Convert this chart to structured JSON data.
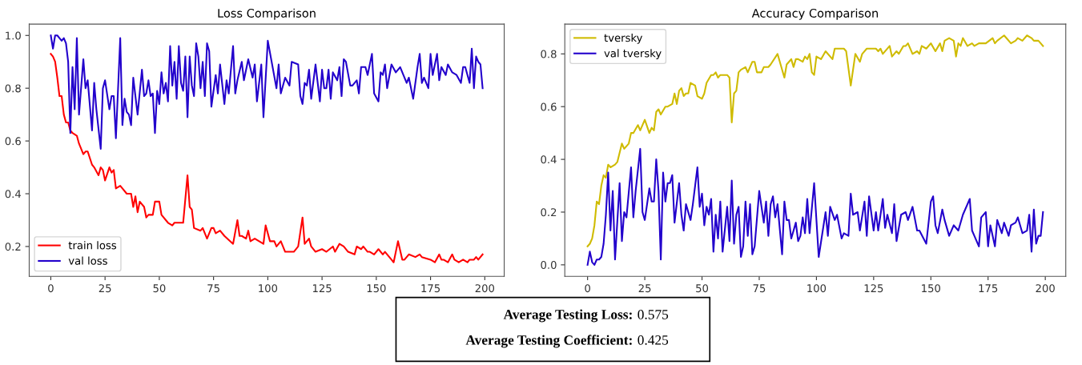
{
  "chart_data": [
    {
      "type": "line",
      "title": "Loss Comparison",
      "xlim": [
        -9.95,
        208.95
      ],
      "xticks": [
        0,
        25,
        50,
        75,
        100,
        125,
        150,
        175,
        200
      ],
      "ylim": [
        0.087,
        1.043
      ],
      "yticks": [
        0.2,
        0.4,
        0.6,
        0.8,
        {
          "value": 1,
          "label": "1.0"
        }
      ],
      "legend": "lower left",
      "grid": false,
      "annotations": [
        "Average Testing Loss: 0.575",
        "Average Testing Coefficient: 0.425"
      ],
      "series": [
        {
          "name": "train loss",
          "color": "#ff0000",
          "x": [
            0,
            1,
            2,
            3,
            4,
            5,
            6,
            7,
            8,
            9,
            10,
            12,
            13,
            15,
            16,
            17,
            19,
            20,
            22,
            23,
            24,
            25,
            27,
            28,
            29,
            30,
            32,
            33,
            35,
            37,
            38,
            39,
            40,
            41,
            43,
            44,
            45,
            47,
            48,
            50,
            51,
            54,
            56,
            57,
            60,
            61,
            63,
            64,
            65,
            66,
            69,
            70,
            72,
            74,
            75,
            76,
            78,
            80,
            84,
            86,
            87,
            88,
            90,
            91,
            92,
            94,
            96,
            98,
            99,
            101,
            103,
            104,
            106,
            108,
            110,
            112,
            114,
            116,
            117,
            119,
            120,
            122,
            125,
            127,
            130,
            131,
            133,
            135,
            137,
            140,
            141,
            143,
            144,
            146,
            147,
            149,
            151,
            153,
            154,
            157,
            158,
            160,
            162,
            163,
            165,
            168,
            170,
            171,
            175,
            177,
            179,
            180,
            181,
            183,
            185,
            186,
            188,
            190,
            192,
            193,
            195,
            196,
            197,
            199
          ],
          "values": [
            0.93,
            0.92,
            0.9,
            0.84,
            0.77,
            0.77,
            0.7,
            0.67,
            0.67,
            0.64,
            0.63,
            0.62,
            0.59,
            0.55,
            0.56,
            0.56,
            0.51,
            0.5,
            0.47,
            0.5,
            0.49,
            0.45,
            0.5,
            0.48,
            0.49,
            0.42,
            0.43,
            0.42,
            0.4,
            0.4,
            0.35,
            0.39,
            0.33,
            0.37,
            0.35,
            0.31,
            0.32,
            0.32,
            0.37,
            0.37,
            0.32,
            0.29,
            0.28,
            0.29,
            0.29,
            0.29,
            0.47,
            0.35,
            0.34,
            0.27,
            0.26,
            0.27,
            0.23,
            0.27,
            0.27,
            0.25,
            0.26,
            0.24,
            0.21,
            0.3,
            0.24,
            0.24,
            0.23,
            0.26,
            0.22,
            0.23,
            0.22,
            0.21,
            0.28,
            0.22,
            0.22,
            0.2,
            0.22,
            0.18,
            0.18,
            0.18,
            0.2,
            0.31,
            0.21,
            0.23,
            0.2,
            0.18,
            0.19,
            0.18,
            0.2,
            0.18,
            0.21,
            0.2,
            0.18,
            0.17,
            0.2,
            0.19,
            0.2,
            0.18,
            0.18,
            0.17,
            0.19,
            0.17,
            0.18,
            0.15,
            0.14,
            0.22,
            0.15,
            0.15,
            0.17,
            0.16,
            0.17,
            0.16,
            0.15,
            0.14,
            0.17,
            0.15,
            0.15,
            0.14,
            0.17,
            0.15,
            0.14,
            0.15,
            0.14,
            0.15,
            0.15,
            0.16,
            0.15,
            0.17
          ]
        },
        {
          "name": "val loss",
          "color": "#2200cc",
          "x": [
            0,
            1,
            2,
            3,
            4,
            5,
            6,
            7,
            8,
            9,
            10,
            11,
            12,
            13,
            15,
            16,
            17,
            19,
            20,
            21,
            23,
            24,
            25,
            27,
            28,
            29,
            30,
            32,
            33,
            34,
            35,
            36,
            37,
            38,
            40,
            42,
            43,
            44,
            45,
            46,
            47,
            48,
            49,
            50,
            51,
            52,
            53,
            54,
            55,
            56,
            57,
            58,
            59,
            60,
            61,
            62,
            63,
            64,
            65,
            66,
            67,
            68,
            69,
            70,
            71,
            72,
            73,
            74,
            76,
            77,
            78,
            80,
            81,
            82,
            84,
            85,
            86,
            88,
            89,
            91,
            93,
            94,
            95,
            97,
            98,
            100,
            104,
            105,
            106,
            108,
            110,
            111,
            114,
            115,
            116,
            117,
            118,
            119,
            120,
            122,
            124,
            125,
            126,
            127,
            128,
            129,
            130,
            132,
            133,
            134,
            135,
            136,
            138,
            139,
            141,
            142,
            143,
            145,
            146,
            148,
            149,
            151,
            152,
            153,
            154,
            155,
            157,
            159,
            161,
            164,
            165,
            167,
            169,
            170,
            171,
            172,
            174,
            175,
            176,
            178,
            179,
            180,
            182,
            183,
            185,
            187,
            189,
            190,
            191,
            193,
            194,
            195,
            196,
            197,
            198,
            199
          ],
          "values": [
            1.0,
            0.95,
            1.0,
            1.0,
            0.99,
            0.98,
            0.99,
            0.97,
            0.9,
            0.63,
            0.88,
            0.72,
            0.99,
            0.7,
            0.91,
            0.8,
            0.83,
            0.64,
            0.82,
            0.72,
            0.57,
            0.8,
            0.83,
            0.72,
            0.77,
            0.77,
            0.61,
            0.99,
            0.66,
            0.76,
            0.71,
            0.7,
            0.66,
            0.84,
            0.7,
            0.87,
            0.77,
            0.78,
            0.83,
            0.77,
            0.78,
            0.63,
            0.79,
            0.74,
            0.86,
            0.78,
            0.82,
            0.75,
            0.96,
            0.81,
            0.9,
            0.76,
            0.96,
            0.82,
            0.79,
            0.92,
            0.69,
            0.92,
            0.81,
            0.77,
            0.97,
            0.92,
            0.8,
            0.9,
            0.77,
            0.97,
            0.94,
            0.73,
            0.85,
            0.78,
            0.89,
            0.74,
            0.83,
            0.78,
            0.96,
            0.78,
            0.83,
            0.9,
            0.83,
            0.91,
            0.84,
            0.89,
            0.75,
            0.89,
            0.69,
            0.98,
            0.8,
            0.89,
            0.78,
            0.84,
            0.81,
            0.9,
            0.89,
            0.77,
            0.74,
            0.82,
            0.81,
            0.87,
            0.76,
            0.89,
            0.75,
            0.87,
            0.8,
            0.8,
            0.87,
            0.76,
            0.86,
            0.83,
            0.88,
            0.77,
            0.91,
            0.9,
            0.81,
            0.81,
            0.83,
            0.78,
            0.88,
            0.88,
            0.85,
            0.93,
            0.78,
            0.75,
            0.86,
            0.85,
            0.89,
            0.8,
            0.89,
            0.86,
            0.88,
            0.82,
            0.84,
            0.76,
            0.88,
            0.93,
            0.82,
            0.84,
            0.8,
            0.93,
            0.85,
            0.93,
            0.83,
            0.88,
            0.85,
            0.89,
            0.86,
            0.85,
            0.82,
            0.88,
            0.88,
            0.82,
            0.95,
            0.8,
            0.92,
            0.9,
            0.89,
            0.8
          ]
        }
      ]
    },
    {
      "type": "line",
      "title": "Accuracy Comparison",
      "xlim": [
        -9.95,
        208.95
      ],
      "xticks": [
        0,
        25,
        50,
        75,
        100,
        125,
        150,
        175,
        200
      ],
      "ylim": [
        -0.0435,
        0.913
      ],
      "yticks": [
        {
          "value": 0,
          "label": "0.0"
        },
        0.2,
        0.4,
        0.6,
        0.8
      ],
      "legend": "upper left",
      "grid": false,
      "series": [
        {
          "name": "tversky",
          "color": "#cfbb00",
          "x": [
            0,
            1,
            2,
            3,
            4,
            5,
            6,
            7,
            8,
            9,
            10,
            12,
            13,
            15,
            16,
            18,
            19,
            20,
            22,
            23,
            25,
            27,
            28,
            29,
            30,
            31,
            32,
            34,
            35,
            37,
            38,
            39,
            40,
            41,
            42,
            43,
            44,
            45,
            47,
            48,
            50,
            51,
            52,
            54,
            55,
            56,
            57,
            58,
            60,
            61,
            62,
            63,
            64,
            65,
            66,
            67,
            69,
            70,
            72,
            73,
            74,
            76,
            77,
            79,
            80,
            83,
            86,
            87,
            88,
            89,
            90,
            91,
            92,
            94,
            95,
            96,
            97,
            98,
            99,
            100,
            102,
            104,
            107,
            108,
            110,
            112,
            113,
            115,
            117,
            119,
            120,
            122,
            124,
            126,
            127,
            128,
            129,
            132,
            133,
            135,
            136,
            138,
            139,
            140,
            142,
            144,
            145,
            146,
            148,
            150,
            152,
            154,
            155,
            156,
            158,
            160,
            161,
            162,
            163,
            164,
            166,
            168,
            169,
            171,
            174,
            177,
            178,
            179,
            182,
            183,
            185,
            187,
            188,
            190,
            192,
            194,
            195,
            197,
            198,
            199
          ],
          "values": [
            0.07,
            0.08,
            0.1,
            0.15,
            0.24,
            0.23,
            0.3,
            0.34,
            0.33,
            0.38,
            0.37,
            0.38,
            0.39,
            0.46,
            0.44,
            0.46,
            0.5,
            0.5,
            0.53,
            0.51,
            0.55,
            0.5,
            0.52,
            0.51,
            0.58,
            0.59,
            0.57,
            0.6,
            0.6,
            0.61,
            0.65,
            0.61,
            0.66,
            0.67,
            0.64,
            0.65,
            0.65,
            0.69,
            0.68,
            0.64,
            0.63,
            0.65,
            0.69,
            0.72,
            0.72,
            0.73,
            0.71,
            0.72,
            0.72,
            0.72,
            0.71,
            0.54,
            0.65,
            0.66,
            0.73,
            0.74,
            0.75,
            0.73,
            0.77,
            0.77,
            0.73,
            0.73,
            0.75,
            0.75,
            0.76,
            0.8,
            0.71,
            0.76,
            0.77,
            0.78,
            0.75,
            0.78,
            0.78,
            0.77,
            0.79,
            0.78,
            0.8,
            0.73,
            0.72,
            0.79,
            0.78,
            0.81,
            0.78,
            0.82,
            0.82,
            0.82,
            0.81,
            0.68,
            0.8,
            0.77,
            0.8,
            0.82,
            0.82,
            0.82,
            0.81,
            0.82,
            0.8,
            0.83,
            0.79,
            0.81,
            0.8,
            0.83,
            0.83,
            0.84,
            0.8,
            0.81,
            0.8,
            0.83,
            0.82,
            0.84,
            0.81,
            0.84,
            0.81,
            0.85,
            0.86,
            0.85,
            0.79,
            0.84,
            0.83,
            0.86,
            0.83,
            0.84,
            0.83,
            0.84,
            0.84,
            0.86,
            0.84,
            0.85,
            0.87,
            0.86,
            0.84,
            0.85,
            0.86,
            0.85,
            0.87,
            0.86,
            0.85,
            0.85,
            0.84,
            0.83
          ]
        },
        {
          "name": "val tversky",
          "color": "#2200cc",
          "x": [
            0,
            1,
            2,
            3,
            4,
            5,
            6,
            7,
            8,
            9,
            10,
            11,
            12,
            14,
            15,
            16,
            17,
            19,
            20,
            21,
            23,
            24,
            25,
            27,
            28,
            29,
            30,
            31,
            32,
            33,
            34,
            35,
            36,
            37,
            38,
            40,
            41,
            42,
            43,
            45,
            46,
            48,
            49,
            50,
            51,
            52,
            53,
            54,
            55,
            56,
            57,
            58,
            59,
            61,
            62,
            63,
            64,
            65,
            66,
            67,
            68,
            69,
            70,
            71,
            72,
            73,
            75,
            77,
            78,
            79,
            80,
            81,
            82,
            83,
            85,
            86,
            87,
            88,
            89,
            91,
            92,
            93,
            94,
            95,
            96,
            97,
            99,
            101,
            104,
            105,
            106,
            108,
            109,
            111,
            112,
            114,
            115,
            116,
            118,
            119,
            121,
            122,
            123,
            125,
            126,
            127,
            129,
            130,
            131,
            133,
            134,
            135,
            137,
            139,
            140,
            142,
            144,
            145,
            148,
            150,
            151,
            152,
            153,
            155,
            156,
            158,
            160,
            162,
            164,
            167,
            168,
            169,
            171,
            172,
            174,
            175,
            176,
            178,
            179,
            181,
            182,
            184,
            185,
            187,
            188,
            190,
            192,
            193,
            194,
            195,
            196,
            197,
            198,
            199
          ],
          "values": [
            0.0,
            0.05,
            0.01,
            0.0,
            0.02,
            0.02,
            0.03,
            0.08,
            0.19,
            0.35,
            0.13,
            0.28,
            0.02,
            0.31,
            0.09,
            0.2,
            0.18,
            0.37,
            0.18,
            0.28,
            0.44,
            0.2,
            0.17,
            0.29,
            0.24,
            0.24,
            0.4,
            0.28,
            0.02,
            0.35,
            0.24,
            0.31,
            0.31,
            0.34,
            0.16,
            0.31,
            0.19,
            0.13,
            0.23,
            0.17,
            0.23,
            0.37,
            0.22,
            0.27,
            0.15,
            0.22,
            0.19,
            0.25,
            0.05,
            0.19,
            0.1,
            0.24,
            0.05,
            0.22,
            0.09,
            0.32,
            0.08,
            0.19,
            0.22,
            0.03,
            0.07,
            0.24,
            0.11,
            0.23,
            0.04,
            0.07,
            0.28,
            0.16,
            0.24,
            0.11,
            0.23,
            0.26,
            0.18,
            0.23,
            0.04,
            0.24,
            0.17,
            0.17,
            0.1,
            0.16,
            0.09,
            0.11,
            0.18,
            0.12,
            0.25,
            0.12,
            0.31,
            0.03,
            0.2,
            0.11,
            0.22,
            0.17,
            0.19,
            0.1,
            0.12,
            0.11,
            0.27,
            0.19,
            0.2,
            0.13,
            0.24,
            0.11,
            0.26,
            0.13,
            0.2,
            0.13,
            0.25,
            0.14,
            0.19,
            0.12,
            0.23,
            0.09,
            0.19,
            0.2,
            0.17,
            0.22,
            0.13,
            0.13,
            0.08,
            0.24,
            0.26,
            0.15,
            0.12,
            0.21,
            0.17,
            0.11,
            0.15,
            0.13,
            0.19,
            0.25,
            0.13,
            0.11,
            0.07,
            0.18,
            0.2,
            0.07,
            0.15,
            0.07,
            0.17,
            0.12,
            0.16,
            0.11,
            0.15,
            0.16,
            0.18,
            0.12,
            0.13,
            0.19,
            0.05,
            0.21,
            0.08,
            0.11,
            0.11,
            0.2
          ]
        }
      ]
    }
  ]
}
